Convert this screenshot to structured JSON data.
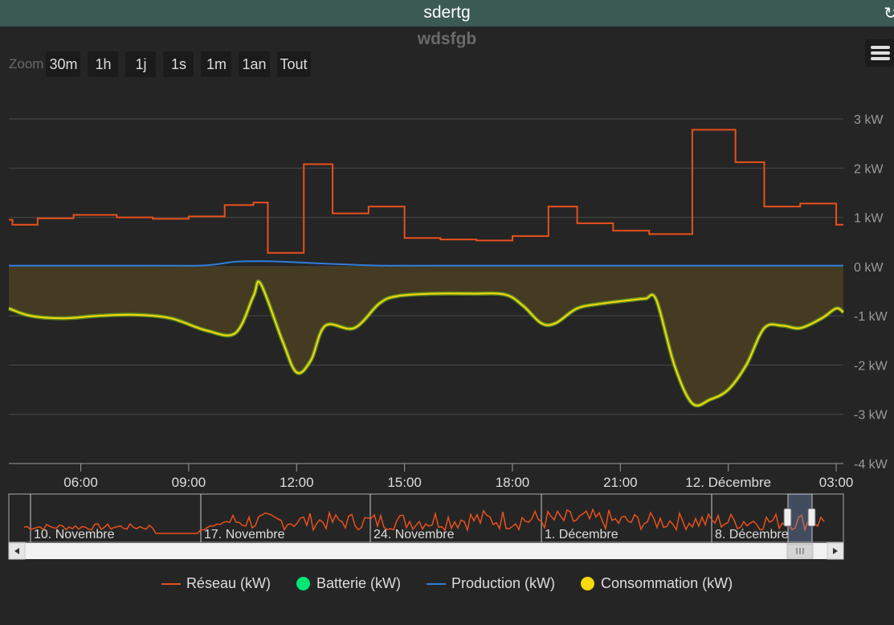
{
  "app": {
    "title": "sdertg"
  },
  "zoom": {
    "label": "Zoom",
    "buttons": [
      "30m",
      "1h",
      "1j",
      "1s",
      "1m",
      "1an",
      "Tout"
    ]
  },
  "navigator": {
    "labels": [
      "10. Novembre",
      "17. Novembre",
      "24. Novembre",
      "1. Décembre",
      "8. Décembre"
    ]
  },
  "chart_data": {
    "type": "line",
    "title": "wdsfgb",
    "x_tick_labels": [
      "06:00",
      "09:00",
      "12:00",
      "15:00",
      "18:00",
      "21:00",
      "12. Décembre",
      "03:00"
    ],
    "y_tick_labels": [
      "3 kW",
      "2 kW",
      "1 kW",
      "0 kW",
      "-1 kW",
      "-2 kW",
      "-3 kW",
      "-4 kW"
    ],
    "ylim": [
      -4,
      3
    ],
    "x_unit": "hours since 11 Dec 00:00",
    "xlim": [
      4.0,
      27.2
    ],
    "grid": true,
    "legend": "bottom",
    "series": [
      {
        "name": "Réseau (kW)",
        "color": "#e8501c",
        "shape": "step",
        "x": [
          4.0,
          4.1,
          4.8,
          5.8,
          7.0,
          8.0,
          9.0,
          10.0,
          10.8,
          11.2,
          12.2,
          13.0,
          14.0,
          15.0,
          16.0,
          17.0,
          18.0,
          19.0,
          19.8,
          20.8,
          21.8,
          23.0,
          24.2,
          25.0,
          26.0,
          27.0,
          27.2
        ],
        "values": [
          0.95,
          0.85,
          0.98,
          1.05,
          1.0,
          0.97,
          1.02,
          1.25,
          1.3,
          0.28,
          2.08,
          1.08,
          1.22,
          0.58,
          0.55,
          0.53,
          0.62,
          1.22,
          0.88,
          0.73,
          0.66,
          2.78,
          2.12,
          1.22,
          1.28,
          0.85,
          0.85
        ]
      },
      {
        "name": "Production (kW)",
        "color": "#2f7ed8",
        "shape": "line",
        "x": [
          4.0,
          8.0,
          9.3,
          9.8,
          10.3,
          11.0,
          11.6,
          12.5,
          13.5,
          14.5,
          16.0,
          27.2
        ],
        "values": [
          0.02,
          0.02,
          0.02,
          0.05,
          0.1,
          0.11,
          0.1,
          0.07,
          0.04,
          0.02,
          0.02,
          0.02
        ]
      },
      {
        "name": "Batterie (kW)",
        "color": "#00e676",
        "shape": "line",
        "x": [],
        "values": []
      },
      {
        "name": "Consommation (kW)",
        "color": "#f5d90a",
        "shape": "spline-area",
        "x": [
          4.0,
          4.6,
          5.5,
          6.5,
          7.5,
          8.5,
          9.5,
          10.3,
          10.8,
          11.0,
          11.6,
          12.0,
          12.4,
          12.8,
          13.6,
          14.3,
          14.8,
          15.8,
          16.9,
          17.8,
          18.3,
          18.8,
          19.2,
          19.8,
          20.5,
          21.3,
          21.7,
          22.0,
          22.5,
          23.0,
          23.5,
          24.0,
          24.5,
          25.0,
          25.5,
          26.0,
          26.6,
          27.0,
          27.2
        ],
        "values": [
          -0.85,
          -1.0,
          -1.05,
          -1.0,
          -0.98,
          -1.05,
          -1.3,
          -1.35,
          -0.6,
          -0.35,
          -1.5,
          -2.15,
          -1.9,
          -1.2,
          -1.25,
          -0.75,
          -0.6,
          -0.55,
          -0.55,
          -0.57,
          -0.8,
          -1.15,
          -1.15,
          -0.85,
          -0.75,
          -0.68,
          -0.65,
          -0.68,
          -2.0,
          -2.78,
          -2.7,
          -2.5,
          -2.0,
          -1.25,
          -1.2,
          -1.25,
          -1.05,
          -0.85,
          -0.93
        ]
      }
    ]
  }
}
